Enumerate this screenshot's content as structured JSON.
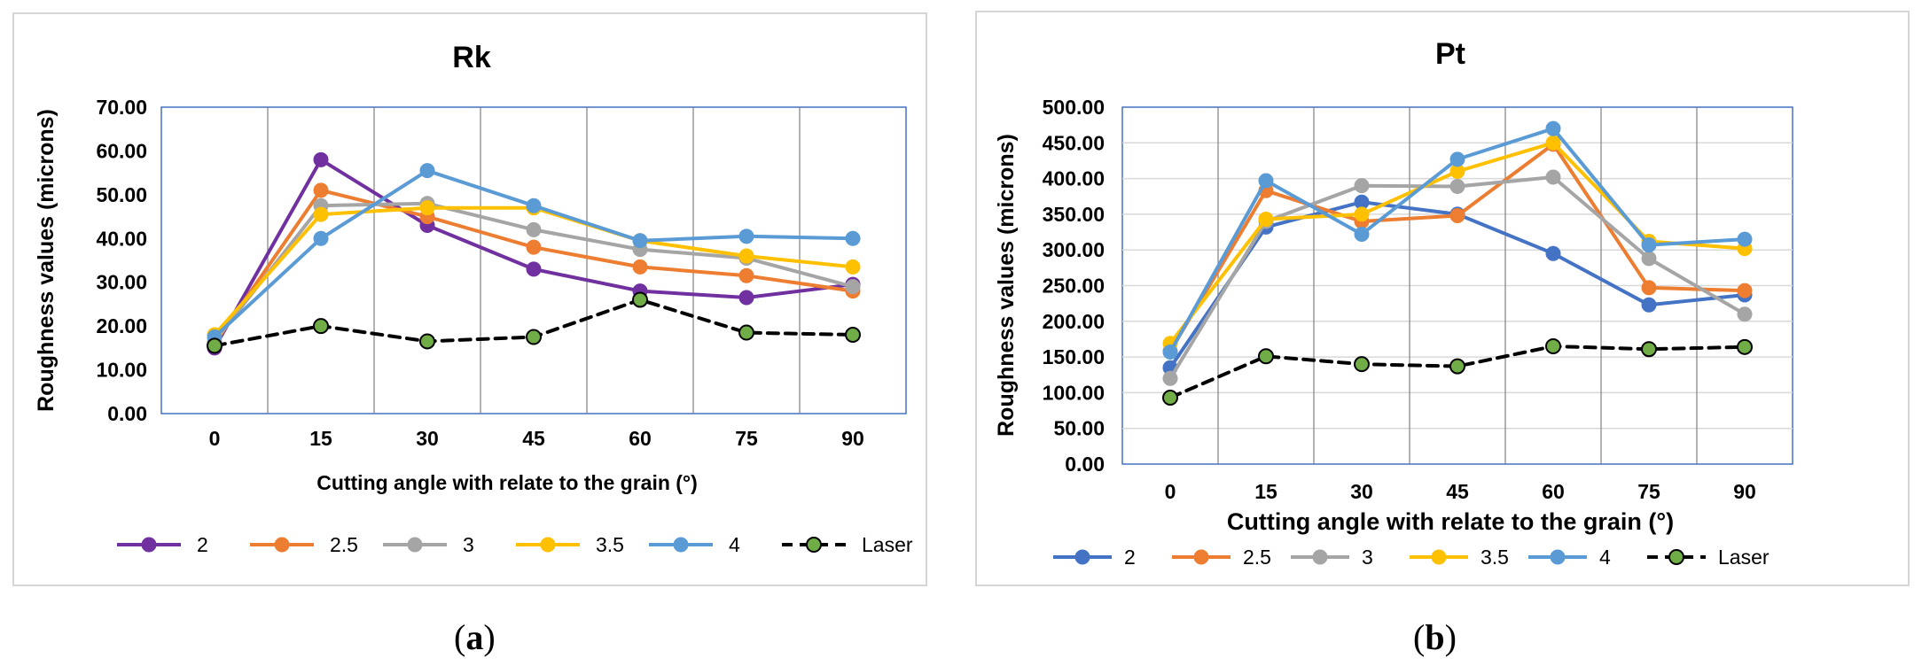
{
  "chart_data": [
    {
      "panel": "a",
      "type": "line",
      "title": "Rk",
      "xlabel": "Cutting angle with relate to the grain (°)",
      "ylabel": "Roughness values (microns)",
      "categories": [
        "0",
        "15",
        "30",
        "45",
        "60",
        "75",
        "90"
      ],
      "yticks": [
        "0.00",
        "10.00",
        "20.00",
        "30.00",
        "40.00",
        "50.00",
        "60.00",
        "70.00"
      ],
      "ylim": [
        0,
        70
      ],
      "grid": "vertical",
      "legend_position": "bottom",
      "series": [
        {
          "name": "2",
          "color": "#7030a0",
          "dashed": false,
          "values": [
            15.0,
            58.0,
            43.0,
            33.0,
            28.0,
            26.5,
            29.5
          ]
        },
        {
          "name": "2.5",
          "color": "#ed7d31",
          "dashed": false,
          "values": [
            16.0,
            51.0,
            45.0,
            38.0,
            33.5,
            31.5,
            28.0
          ]
        },
        {
          "name": "3",
          "color": "#a5a5a5",
          "dashed": false,
          "values": [
            16.5,
            47.5,
            48.0,
            42.0,
            37.5,
            35.5,
            29.0
          ]
        },
        {
          "name": "3.5",
          "color": "#ffc000",
          "dashed": false,
          "values": [
            18.0,
            45.5,
            47.0,
            47.0,
            39.5,
            36.0,
            33.5
          ]
        },
        {
          "name": "4",
          "color": "#5b9bd5",
          "dashed": false,
          "values": [
            17.5,
            40.0,
            55.5,
            47.5,
            39.5,
            40.5,
            40.0
          ]
        },
        {
          "name": "Laser",
          "color": "#000000",
          "marker_color": "#70ad47",
          "dashed": true,
          "values": [
            15.5,
            20.0,
            16.5,
            17.5,
            26.0,
            18.5,
            18.0
          ]
        }
      ]
    },
    {
      "panel": "b",
      "type": "line",
      "title": "Pt",
      "xlabel": "Cutting angle with relate to the grain (°)",
      "ylabel": "Roughness values (microns)",
      "categories": [
        "0",
        "15",
        "30",
        "45",
        "60",
        "75",
        "90"
      ],
      "yticks": [
        "0.00",
        "50.00",
        "100.00",
        "150.00",
        "200.00",
        "250.00",
        "300.00",
        "350.00",
        "400.00",
        "450.00",
        "500.00"
      ],
      "ylim": [
        0,
        500
      ],
      "grid": "both",
      "legend_position": "bottom",
      "series": [
        {
          "name": "2",
          "color": "#4472c4",
          "dashed": false,
          "values": [
            135,
            332,
            367,
            350,
            295,
            223,
            237
          ]
        },
        {
          "name": "2.5",
          "color": "#ed7d31",
          "dashed": false,
          "values": [
            158,
            383,
            340,
            348,
            448,
            247,
            243
          ]
        },
        {
          "name": "3",
          "color": "#a5a5a5",
          "dashed": false,
          "values": [
            120,
            340,
            390,
            389,
            402,
            288,
            210
          ]
        },
        {
          "name": "3.5",
          "color": "#ffc000",
          "dashed": false,
          "values": [
            169,
            343,
            350,
            410,
            450,
            312,
            302
          ]
        },
        {
          "name": "4",
          "color": "#5b9bd5",
          "dashed": false,
          "values": [
            157,
            397,
            322,
            427,
            470,
            307,
            315
          ]
        },
        {
          "name": "Laser",
          "color": "#000000",
          "marker_color": "#70ad47",
          "dashed": true,
          "values": [
            93,
            151,
            140,
            137,
            165,
            161,
            164
          ]
        }
      ]
    }
  ],
  "captions": {
    "a_open": "(",
    "a_letter": "a",
    "a_close": ")",
    "b_open": "(",
    "b_letter": "b",
    "b_close": ")"
  }
}
